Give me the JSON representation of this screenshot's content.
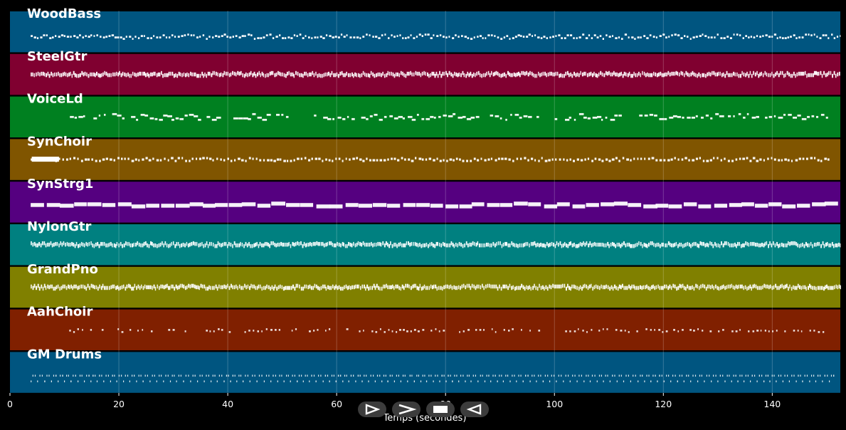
{
  "chart_data": {
    "type": "piano-roll",
    "title": "",
    "xlabel": "Temps (secondes)",
    "ylabel": "",
    "xlim": [
      0,
      152.5
    ],
    "xticks": [
      0,
      20,
      40,
      60,
      80,
      100,
      120,
      140
    ],
    "grid": true,
    "tracks": [
      {
        "name": "WoodBass",
        "color": "#005580",
        "style": "bass",
        "start": 3.8,
        "end": 152.5,
        "gaps": []
      },
      {
        "name": "SteelGtr",
        "color": "#800030",
        "style": "dense",
        "start": 3.8,
        "end": 152.5,
        "gaps": []
      },
      {
        "name": "VoiceLd",
        "color": "#008020",
        "style": "melody",
        "start": 11,
        "end": 150.5,
        "gaps": [
          [
            38.5,
            40.5
          ],
          [
            51.5,
            55.5
          ],
          [
            97.5,
            100
          ],
          [
            112,
            115.5
          ]
        ]
      },
      {
        "name": "SynChoir",
        "color": "#805500",
        "style": "choir",
        "start": 3.8,
        "end": 150.5,
        "gaps": []
      },
      {
        "name": "SynStrg1",
        "color": "#550080",
        "style": "pad",
        "start": 3.8,
        "end": 152.5,
        "gaps": []
      },
      {
        "name": "NylonGtr",
        "color": "#008080",
        "style": "dense",
        "start": 3.8,
        "end": 152.5,
        "gaps": []
      },
      {
        "name": "GrandPno",
        "color": "#808000",
        "style": "dense",
        "start": 3.8,
        "end": 152.5,
        "gaps": []
      },
      {
        "name": "AahChoir",
        "color": "#802000",
        "style": "sparse",
        "start": 9.5,
        "end": 150.5,
        "gaps": []
      },
      {
        "name": "GM Drums",
        "color": "#005580",
        "style": "drums",
        "start": 3.8,
        "end": 151.5,
        "gaps": []
      }
    ]
  },
  "controls": [
    {
      "name": "play-button",
      "icon": "play-icon"
    },
    {
      "name": "fast-forward-button",
      "icon": "fast-forward-icon"
    },
    {
      "name": "stop-button",
      "icon": "stop-icon"
    },
    {
      "name": "rewind-button",
      "icon": "rewind-icon"
    }
  ]
}
